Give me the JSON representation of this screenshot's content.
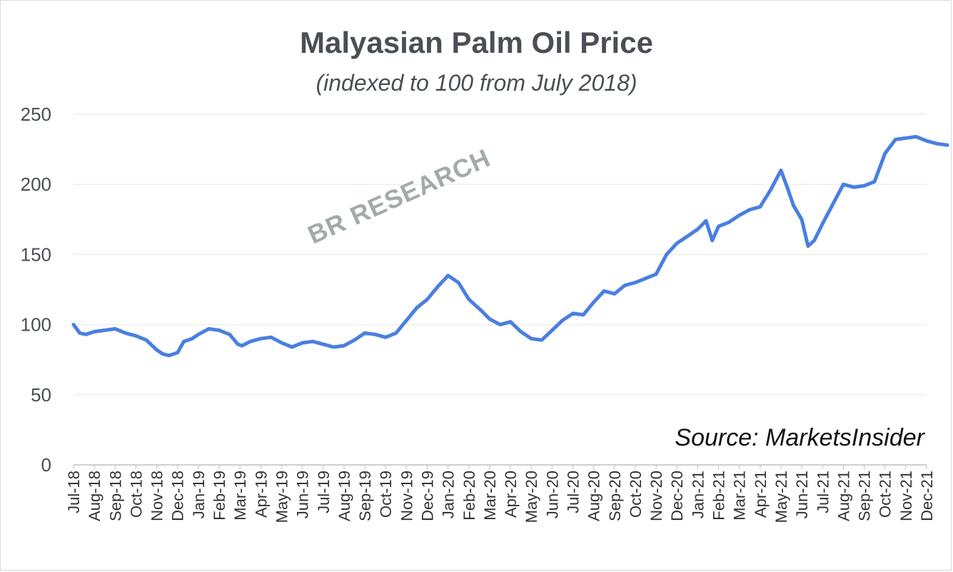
{
  "chart_data": {
    "type": "line",
    "title": "Malyasian Palm Oil Price",
    "subtitle": "(indexed to 100 from July 2018)",
    "source": "Source: MarketsInsider",
    "watermark": "BR RESEARCH",
    "xlabel": "",
    "ylabel": "",
    "ylim": [
      0,
      250
    ],
    "yticks": [
      0,
      50,
      100,
      150,
      200,
      250
    ],
    "grid": true,
    "legend": "none",
    "line_color": "#4a7fe0",
    "categories": [
      "Jul-18",
      "Aug-18",
      "Sep-18",
      "Oct-18",
      "Nov-18",
      "Dec-18",
      "Jan-19",
      "Feb-19",
      "Mar-19",
      "Apr-19",
      "May-19",
      "Jun-19",
      "Jul-19",
      "Aug-19",
      "Sep-19",
      "Oct-19",
      "Nov-19",
      "Dec-19",
      "Jan-20",
      "Feb-20",
      "Mar-20",
      "Apr-20",
      "May-20",
      "Jun-20",
      "Jul-20",
      "Aug-20",
      "Sep-20",
      "Oct-20",
      "Nov-20",
      "Dec-20",
      "Jan-21",
      "Feb-21",
      "Mar-21",
      "Apr-21",
      "May-21",
      "Jun-21",
      "Jul-21",
      "Aug-21",
      "Sep-21",
      "Oct-21",
      "Nov-21",
      "Dec-21"
    ],
    "series": [
      {
        "x": [
          0,
          0.3,
          0.6,
          1,
          1.5,
          2,
          2.5,
          3,
          3.5,
          4,
          4.3,
          4.6,
          5,
          5.3,
          5.7,
          6,
          6.5,
          7,
          7.5,
          7.9,
          8.1,
          8.5,
          9,
          9.5,
          10,
          10.5,
          11,
          11.5,
          12,
          12.5,
          13,
          13.5,
          14,
          14.5,
          15,
          15.5,
          16,
          16.5,
          17,
          17.5,
          18,
          18.5,
          19,
          19.3,
          19.6,
          20,
          20.5,
          21,
          21.5,
          22,
          22.5,
          23,
          23.5,
          24,
          24.5,
          25,
          25.5,
          26,
          26.5,
          27,
          27.5,
          28,
          28.5,
          29,
          29.5,
          30,
          30.4,
          30.7,
          31,
          31.5,
          32,
          32.5,
          33,
          33.5,
          34,
          34.3,
          34.6,
          35,
          35.3,
          35.6,
          36,
          36.5,
          37,
          37.5,
          38,
          38.5,
          39,
          39.5,
          40,
          40.5,
          41,
          41.5,
          42
        ],
        "y": [
          100,
          94,
          93,
          95,
          96,
          97,
          94,
          92,
          89,
          82,
          79,
          78,
          80,
          88,
          90,
          93,
          97,
          96,
          93,
          86,
          85,
          88,
          90,
          91,
          87,
          84,
          87,
          88,
          86,
          84,
          85,
          89,
          94,
          93,
          91,
          94,
          103,
          112,
          118,
          127,
          135,
          130,
          118,
          114,
          110,
          104,
          100,
          102,
          95,
          90,
          89,
          96,
          103,
          108,
          107,
          116,
          124,
          122,
          128,
          130,
          133,
          136,
          150,
          158,
          163,
          168,
          174,
          160,
          170,
          173,
          178,
          182,
          184,
          196,
          210,
          198,
          185,
          175,
          156,
          160,
          172,
          186,
          200,
          198,
          199,
          202,
          222,
          232,
          233,
          234,
          231,
          229,
          228
        ]
      }
    ]
  }
}
